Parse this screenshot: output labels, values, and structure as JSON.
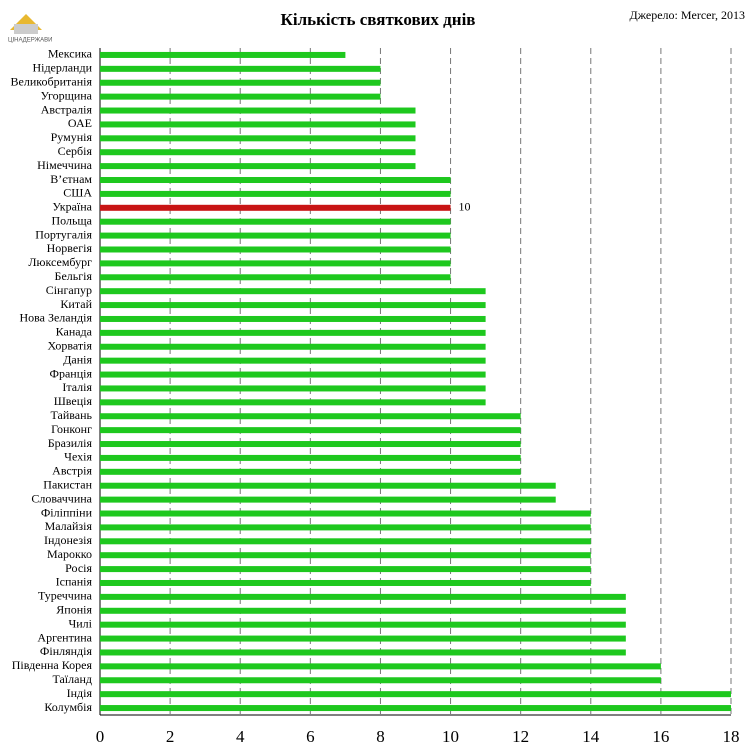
{
  "chart_data": {
    "type": "hbar",
    "title": "Кількість святкових днів",
    "source": "Джерело: Mercer, 2013",
    "logo": "ЦІНАДЕРЖАВИ",
    "categories": [
      "Мексика",
      "Нідерланди",
      "Великобританія",
      "Угорщина",
      "Австралія",
      "ОАЕ",
      "Румунія",
      "Сербія",
      "Німеччина",
      "В’єтнам",
      "США",
      "Україна",
      "Польща",
      "Португалія",
      "Норвегія",
      "Люксембург",
      "Бельгія",
      "Сінгапур",
      "Китай",
      "Нова Зеландія",
      "Канада",
      "Хорватія",
      "Данія",
      "Франція",
      "Італія",
      "Швеція",
      "Тайвань",
      "Гонконг",
      "Бразилія",
      "Чехія",
      "Австрія",
      "Пакистан",
      "Словаччина",
      "Філіппіни",
      "Малайзія",
      "Індонезія",
      "Марокко",
      "Росія",
      "Іспанія",
      "Туреччина",
      "Японія",
      "Чилі",
      "Аргентина",
      "Фінляндія",
      "Південна Корея",
      "Таїланд",
      "Індія",
      "Колумбія"
    ],
    "values": [
      7,
      8,
      8,
      8,
      9,
      9,
      9,
      9,
      9,
      10,
      10,
      10,
      10,
      10,
      10,
      10,
      10,
      11,
      11,
      11,
      11,
      11,
      11,
      11,
      11,
      11,
      12,
      12,
      12,
      12,
      12,
      13,
      13,
      14,
      14,
      14,
      14,
      14,
      14,
      15,
      15,
      15,
      15,
      15,
      16,
      16,
      18,
      18
    ],
    "color": "#1ec81e",
    "highlight": {
      "category": "Україна",
      "color": "#c81414",
      "show_value": true
    },
    "xlim": [
      0,
      18
    ],
    "xticks": [
      0,
      2,
      4,
      6,
      8,
      10,
      12,
      14,
      16,
      18
    ],
    "grid": true
  }
}
